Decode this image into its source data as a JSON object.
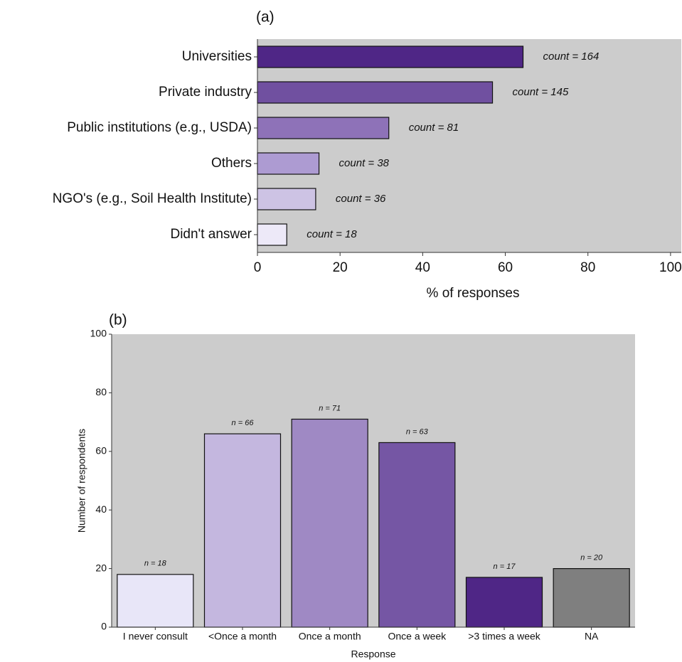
{
  "chart_data": [
    {
      "type": "barh",
      "title": "(a)",
      "x_label": "% of responses",
      "categories": [
        "Universities",
        "Private industry",
        "Public institutions (e.g., USDA)",
        "Others",
        "NGO's (e.g., Soil Health Institute)",
        "Didn't answer"
      ],
      "values": [
        64.3,
        56.9,
        31.8,
        14.9,
        14.1,
        7.1
      ],
      "count_labels": [
        "count = 164",
        "count = 145",
        "count = 81",
        "count = 38",
        "count = 36",
        "count = 18"
      ],
      "colors": [
        "#4f2686",
        "#7050a0",
        "#8e72b8",
        "#ad9bd2",
        "#cdc3e4",
        "#ede9f8"
      ],
      "xlim": [
        0,
        102.6
      ],
      "xticks": [
        0,
        20,
        40,
        60,
        80,
        100
      ],
      "background": "#cccccc"
    },
    {
      "type": "bar",
      "title": "(b)",
      "x_label": "Response",
      "y_label": "Number of respondents",
      "categories": [
        "I never consult",
        "<Once a month",
        "Once a month",
        "Once a week",
        ">3 times a week",
        "NA"
      ],
      "values": [
        18,
        66,
        71,
        63,
        17,
        20
      ],
      "value_labels": [
        "n = 18",
        "n = 66",
        "n = 71",
        "n = 63",
        "n = 17",
        "n = 20"
      ],
      "colors": [
        "#e8e6f8",
        "#c4b7df",
        "#9f89c4",
        "#7556a4",
        "#4f2686",
        "#7f7f7f"
      ],
      "ylim": [
        0,
        100
      ],
      "yticks": [
        0,
        20,
        40,
        60,
        80,
        100
      ],
      "background": "#cccccc"
    }
  ]
}
